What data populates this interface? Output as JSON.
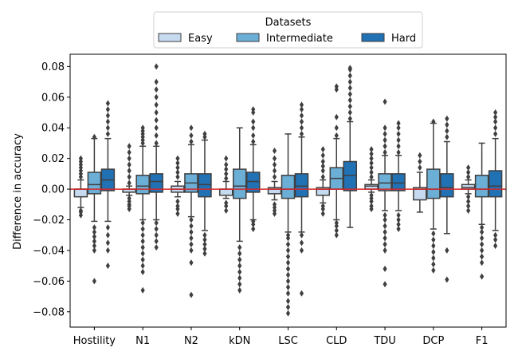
{
  "chart_data": {
    "type": "box",
    "ylabel": "Difference in accuracy",
    "ylim": [
      -0.09,
      0.088
    ],
    "yticks": [
      -0.08,
      -0.06,
      -0.04,
      -0.02,
      0.0,
      0.02,
      0.04,
      0.06,
      0.08
    ],
    "ytick_labels": [
      "−0.08",
      "−0.06",
      "−0.04",
      "−0.02",
      "0.00",
      "0.02",
      "0.04",
      "0.06",
      "0.08"
    ],
    "categories": [
      "Hostility",
      "N1",
      "N2",
      "kDN",
      "LSC",
      "CLD",
      "TDU",
      "DCP",
      "F1"
    ],
    "reference_line": {
      "y": 0.0,
      "color": "#d62728"
    },
    "legend": {
      "title": "Datasets",
      "placement": "top-center",
      "entries": [
        "Easy",
        "Intermediate",
        "Hard"
      ]
    },
    "colors": [
      "#c6dbef",
      "#6baed6",
      "#2171b5"
    ],
    "series": [
      {
        "name": "Easy",
        "boxes": [
          {
            "q1": -0.005,
            "median": 0.0,
            "q3": 0.0,
            "whislo": -0.012,
            "whishi": 0.006,
            "fliers": [
              -0.017,
              -0.015,
              -0.014,
              0.008,
              0.01,
              0.012,
              0.014,
              0.016,
              0.018,
              0.02
            ]
          },
          {
            "q1": -0.002,
            "median": 0.0,
            "q3": 0.0,
            "whislo": -0.004,
            "whishi": 0.002,
            "fliers": [
              -0.013,
              -0.011,
              -0.01,
              -0.008,
              -0.006,
              0.004,
              0.008,
              0.012,
              0.016,
              0.02,
              0.024,
              0.028
            ]
          },
          {
            "q1": -0.002,
            "median": 0.0,
            "q3": 0.002,
            "whislo": -0.005,
            "whishi": 0.005,
            "fliers": [
              -0.016,
              -0.013,
              -0.011,
              -0.008,
              0.008,
              0.011,
              0.014,
              0.017,
              0.02
            ]
          },
          {
            "q1": -0.004,
            "median": 0.0,
            "q3": 0.0,
            "whislo": -0.006,
            "whishi": 0.005,
            "fliers": [
              -0.014,
              -0.011,
              -0.009,
              0.007,
              0.01,
              0.013,
              0.016,
              0.02
            ]
          },
          {
            "q1": -0.003,
            "median": 0.0,
            "q3": 0.001,
            "whislo": -0.007,
            "whishi": 0.005,
            "fliers": [
              -0.016,
              -0.014,
              -0.012,
              -0.01,
              0.008,
              0.012,
              0.016,
              0.02,
              0.025
            ]
          },
          {
            "q1": -0.004,
            "median": 0.0,
            "q3": 0.001,
            "whislo": -0.009,
            "whishi": 0.006,
            "fliers": [
              -0.016,
              -0.013,
              -0.011,
              0.008,
              0.012,
              0.015,
              0.018,
              0.022,
              0.026
            ]
          },
          {
            "q1": 0.0,
            "median": 0.002,
            "q3": 0.003,
            "whislo": -0.002,
            "whishi": 0.006,
            "fliers": [
              -0.013,
              -0.011,
              -0.008,
              -0.006,
              -0.004,
              0.008,
              0.011,
              0.014,
              0.017,
              0.02,
              0.023,
              0.026
            ]
          },
          {
            "q1": -0.007,
            "median": 0.0,
            "q3": 0.001,
            "whislo": -0.015,
            "whishi": 0.011,
            "fliers": [
              0.014,
              0.018,
              0.022
            ]
          },
          {
            "q1": 0.0,
            "median": 0.001,
            "q3": 0.003,
            "whislo": -0.003,
            "whishi": 0.006,
            "fliers": [
              -0.014,
              -0.011,
              -0.008,
              -0.005,
              0.008,
              0.011,
              0.014
            ]
          }
        ]
      },
      {
        "name": "Intermediate",
        "boxes": [
          {
            "q1": -0.003,
            "median": 0.003,
            "q3": 0.011,
            "whislo": -0.021,
            "whishi": 0.033,
            "fliers": [
              -0.06,
              -0.04,
              -0.037,
              -0.034,
              -0.031,
              -0.028,
              -0.025,
              0.034
            ]
          },
          {
            "q1": -0.003,
            "median": 0.002,
            "q3": 0.009,
            "whislo": -0.02,
            "whishi": 0.028,
            "fliers": [
              -0.066,
              -0.054,
              -0.05,
              -0.046,
              -0.042,
              -0.038,
              -0.034,
              -0.03,
              -0.026,
              -0.022,
              0.03,
              0.032,
              0.034,
              0.036,
              0.038,
              0.04
            ]
          },
          {
            "q1": -0.002,
            "median": 0.004,
            "q3": 0.01,
            "whislo": -0.018,
            "whishi": 0.029,
            "fliers": [
              -0.069,
              -0.048,
              -0.04,
              -0.036,
              -0.032,
              -0.028,
              -0.024,
              -0.02,
              0.031,
              0.035,
              0.04
            ]
          },
          {
            "q1": -0.006,
            "median": 0.002,
            "q3": 0.013,
            "whislo": -0.034,
            "whishi": 0.04,
            "fliers": [
              -0.066,
              -0.062,
              -0.058,
              -0.054,
              -0.05,
              -0.046,
              -0.042,
              -0.038
            ]
          },
          {
            "q1": -0.006,
            "median": 0.0,
            "q3": 0.009,
            "whislo": -0.028,
            "whishi": 0.036,
            "fliers": [
              -0.081,
              -0.077,
              -0.073,
              -0.068,
              -0.064,
              -0.06,
              -0.056,
              -0.052,
              -0.048,
              -0.044,
              -0.04,
              -0.036,
              -0.032,
              -0.03
            ]
          },
          {
            "q1": 0.0,
            "median": 0.007,
            "q3": 0.014,
            "whislo": -0.02,
            "whishi": 0.033,
            "fliers": [
              -0.03,
              -0.027,
              -0.024,
              -0.022,
              0.035,
              0.04,
              0.047,
              0.065,
              0.067
            ]
          },
          {
            "q1": -0.001,
            "median": 0.004,
            "q3": 0.01,
            "whislo": -0.014,
            "whishi": 0.022,
            "fliers": [
              -0.062,
              -0.052,
              -0.04,
              -0.036,
              -0.032,
              -0.028,
              -0.024,
              -0.02,
              -0.017,
              0.024,
              0.028,
              0.032,
              0.036,
              0.04,
              0.057
            ]
          },
          {
            "q1": -0.006,
            "median": 0.0,
            "q3": 0.013,
            "whislo": -0.026,
            "whishi": 0.043,
            "fliers": [
              -0.053,
              -0.049,
              -0.045,
              -0.041,
              -0.037,
              -0.033,
              -0.029,
              0.044
            ]
          },
          {
            "q1": -0.005,
            "median": 0.0,
            "q3": 0.009,
            "whislo": -0.023,
            "whishi": 0.03,
            "fliers": [
              -0.057,
              -0.048,
              -0.044,
              -0.04,
              -0.036,
              -0.032,
              -0.028,
              -0.025
            ]
          }
        ]
      },
      {
        "name": "Hard",
        "boxes": [
          {
            "q1": -0.001,
            "median": 0.006,
            "q3": 0.013,
            "whislo": -0.021,
            "whishi": 0.033,
            "fliers": [
              -0.05,
              -0.04,
              -0.035,
              -0.03,
              -0.025,
              0.036,
              0.04,
              0.044,
              0.048,
              0.052,
              0.056
            ]
          },
          {
            "q1": -0.002,
            "median": 0.005,
            "q3": 0.01,
            "whislo": -0.02,
            "whishi": 0.028,
            "fliers": [
              -0.038,
              -0.034,
              -0.03,
              -0.026,
              -0.022,
              0.03,
              0.035,
              0.04,
              0.045,
              0.05,
              0.055,
              0.06,
              0.065,
              0.07,
              0.08
            ]
          },
          {
            "q1": -0.005,
            "median": 0.003,
            "q3": 0.01,
            "whislo": -0.027,
            "whishi": 0.032,
            "fliers": [
              -0.042,
              -0.039,
              -0.036,
              -0.033,
              -0.03,
              0.034,
              0.036
            ]
          },
          {
            "q1": -0.002,
            "median": 0.005,
            "q3": 0.011,
            "whislo": -0.02,
            "whishi": 0.029,
            "fliers": [
              -0.026,
              -0.023,
              -0.021,
              0.031,
              0.035,
              0.04,
              0.044,
              0.05,
              0.052
            ]
          },
          {
            "q1": -0.005,
            "median": 0.002,
            "q3": 0.01,
            "whislo": -0.028,
            "whishi": 0.034,
            "fliers": [
              -0.068,
              -0.04,
              -0.035,
              -0.03,
              0.036,
              0.04,
              0.044,
              0.048,
              0.052,
              0.055
            ]
          },
          {
            "q1": -0.001,
            "median": 0.009,
            "q3": 0.018,
            "whislo": -0.025,
            "whishi": 0.044,
            "fliers": [
              0.046,
              0.05,
              0.054,
              0.058,
              0.062,
              0.066,
              0.07,
              0.074,
              0.078,
              0.079
            ]
          },
          {
            "q1": -0.001,
            "median": 0.004,
            "q3": 0.01,
            "whislo": -0.014,
            "whishi": 0.022,
            "fliers": [
              -0.026,
              -0.023,
              -0.02,
              -0.017,
              0.024,
              0.028,
              0.032,
              0.036,
              0.04,
              0.043
            ]
          },
          {
            "q1": -0.005,
            "median": 0.001,
            "q3": 0.01,
            "whislo": -0.029,
            "whishi": 0.031,
            "fliers": [
              -0.059,
              -0.04,
              0.034,
              0.038,
              0.042,
              0.046
            ]
          },
          {
            "q1": -0.005,
            "median": 0.002,
            "q3": 0.012,
            "whislo": -0.027,
            "whishi": 0.033,
            "fliers": [
              -0.037,
              -0.033,
              -0.03,
              0.036,
              0.04,
              0.044,
              0.047,
              0.05
            ]
          }
        ]
      }
    ]
  }
}
